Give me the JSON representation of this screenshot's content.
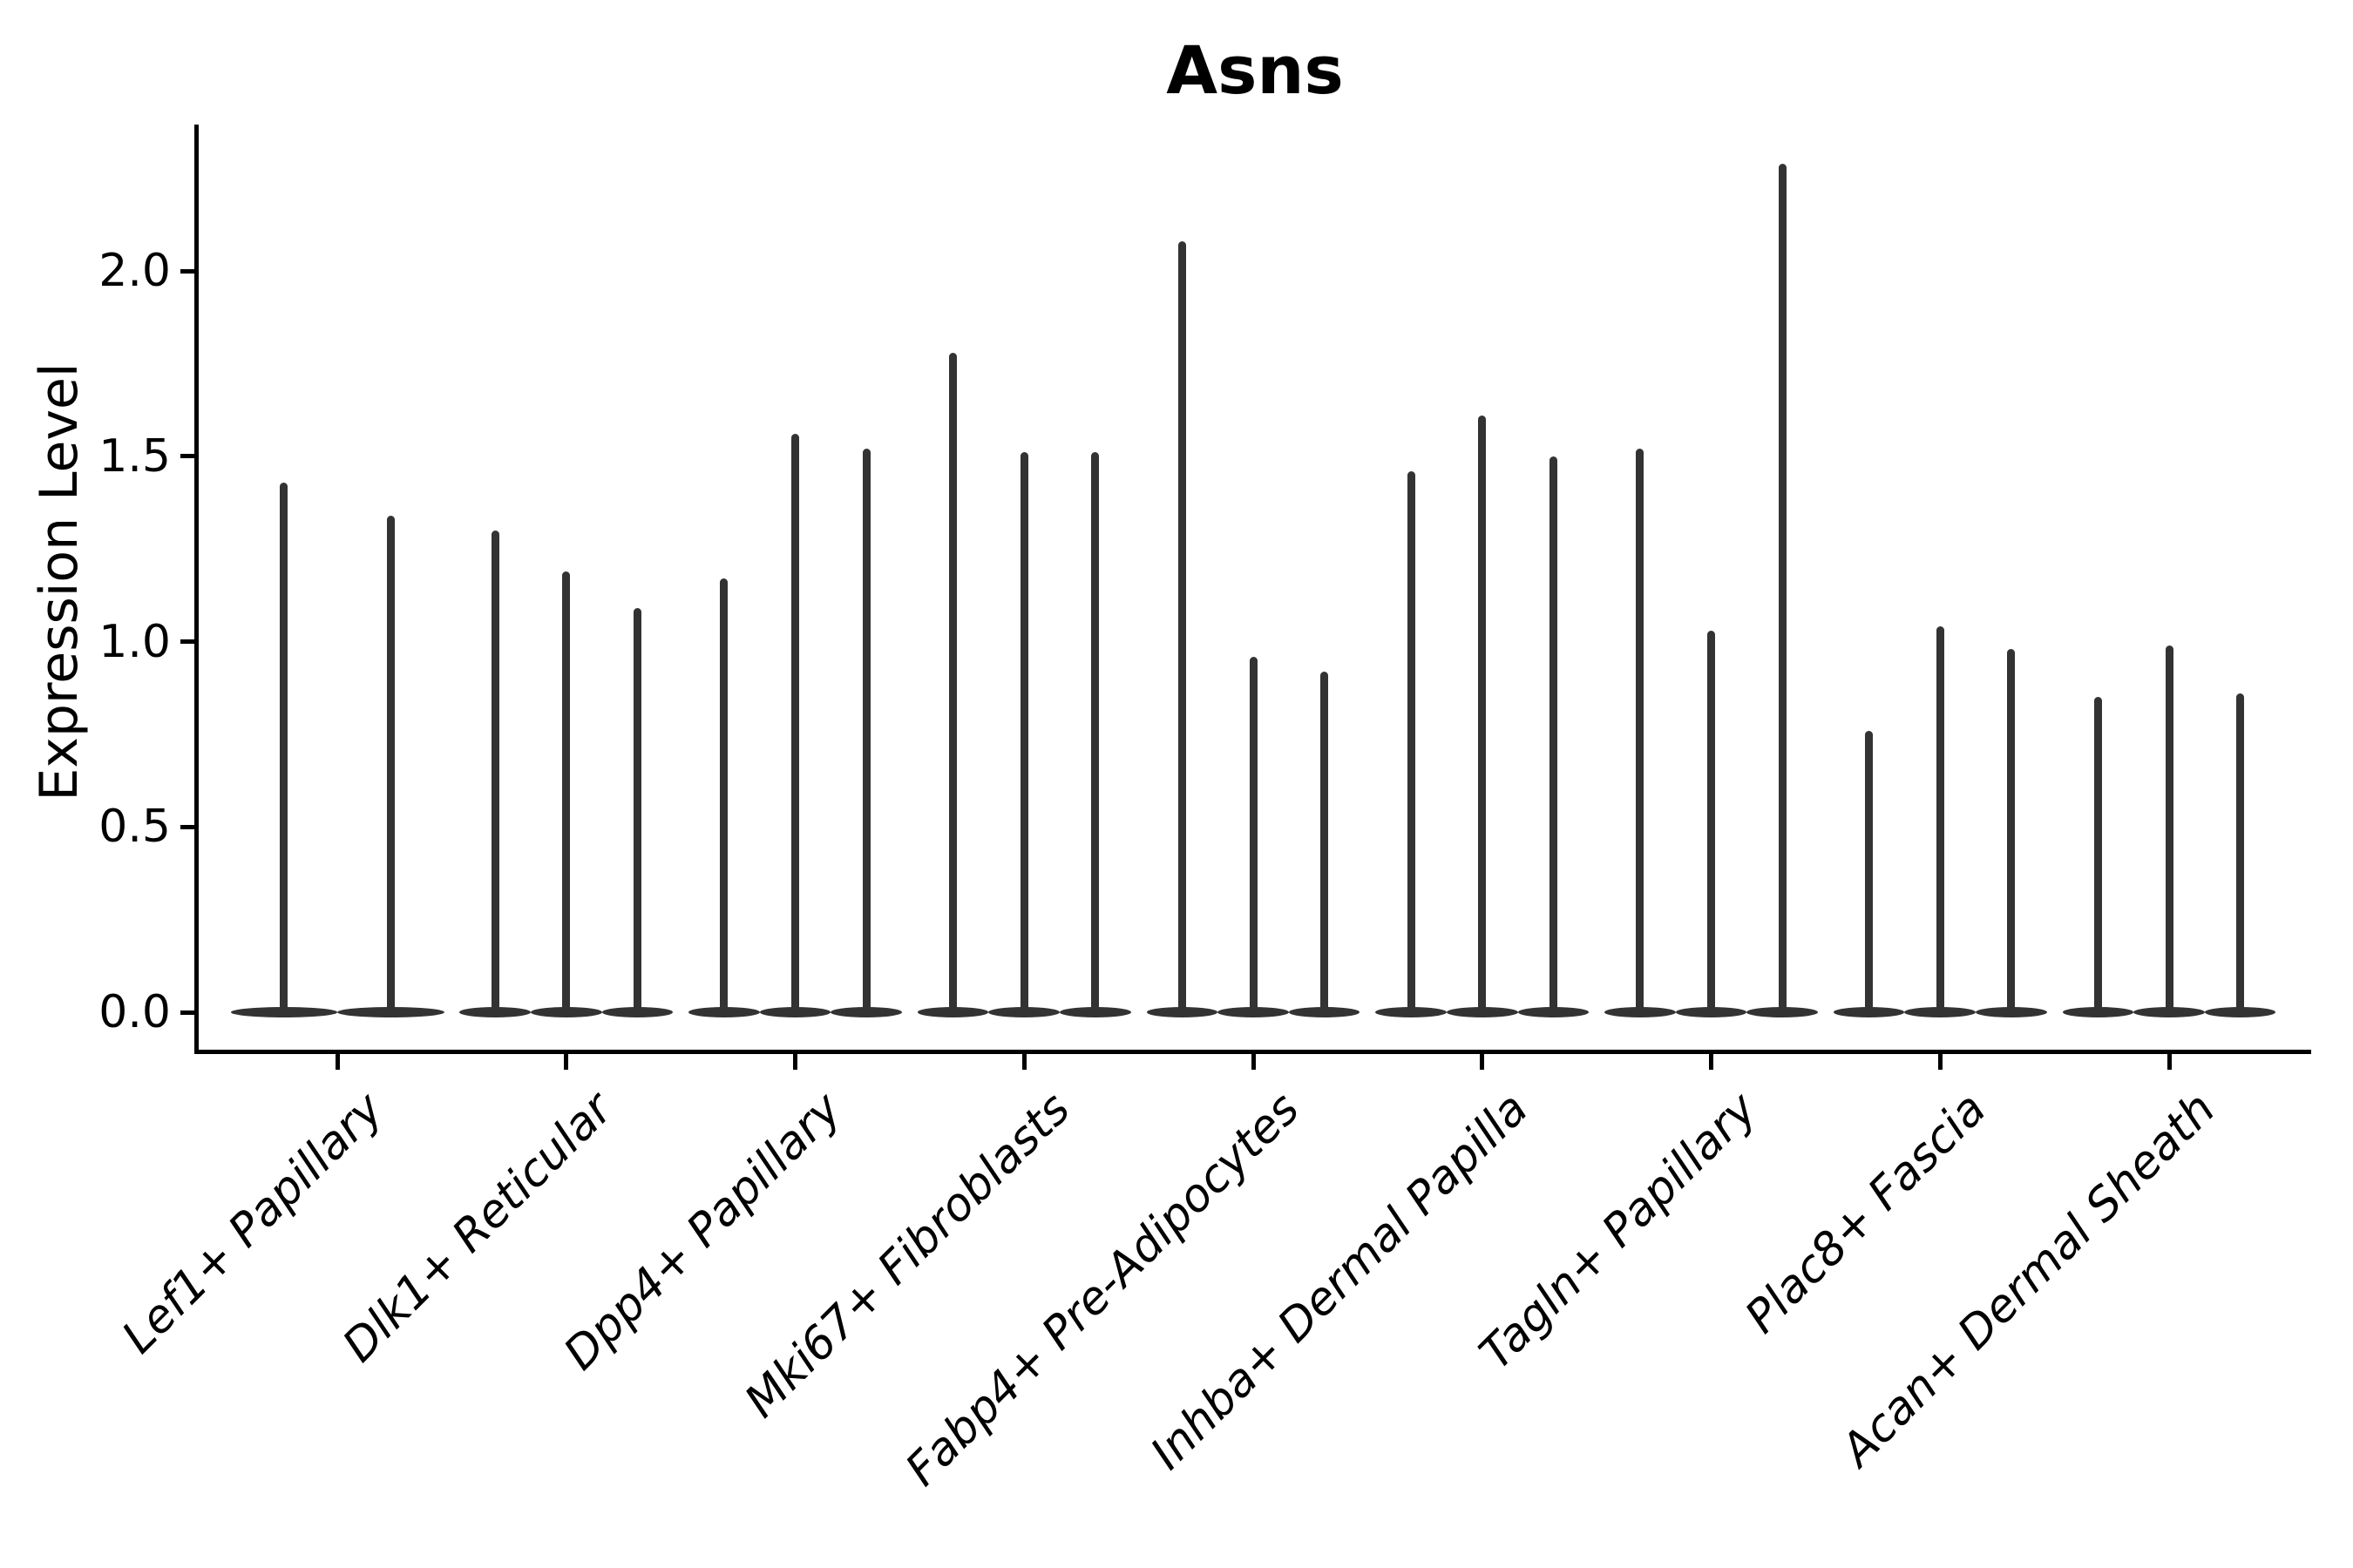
{
  "chart_data": {
    "type": "violin",
    "title": "Asns",
    "xlabel": "",
    "ylabel": "Expression Level",
    "categories": [
      "Lef1+ Papillary",
      "Dlk1+ Reticular",
      "Dpp4+ Papillary",
      "Mki67+ Fibroblasts",
      "Fabp4+ Pre-Adipocytes",
      "Inhba+ Dermal Papilla",
      "Tagln+ Papillary",
      "Plac8+ Fascia",
      "Acan+ Dermal Sheath"
    ],
    "violin_max_values": [
      [
        1.43,
        1.34
      ],
      [
        1.3,
        1.19,
        1.09
      ],
      [
        1.17,
        1.56,
        1.52
      ],
      [
        1.78,
        1.51,
        1.51
      ],
      [
        2.08,
        0.96,
        0.92
      ],
      [
        1.46,
        1.61,
        1.5
      ],
      [
        1.52,
        1.03,
        2.29
      ],
      [
        0.76,
        1.04,
        0.98
      ],
      [
        0.85,
        0.99,
        0.86
      ]
    ],
    "violin_shape_note": "Each category shows 2-3 ultra-narrow violins; nearly all density sits at expression 0 (flat lens at baseline) with a thin spike rising to the per-violin maximum value.",
    "yticks": [
      0.0,
      0.5,
      1.0,
      1.5,
      2.0
    ],
    "ytick_labels": [
      "0.0",
      "0.5",
      "1.0",
      "1.5",
      "2.0"
    ],
    "ylim": [
      -0.11,
      2.39
    ],
    "grid": false,
    "legend": "none",
    "violin_color": "#333333",
    "text_color": "#000000",
    "background": "#ffffff"
  }
}
